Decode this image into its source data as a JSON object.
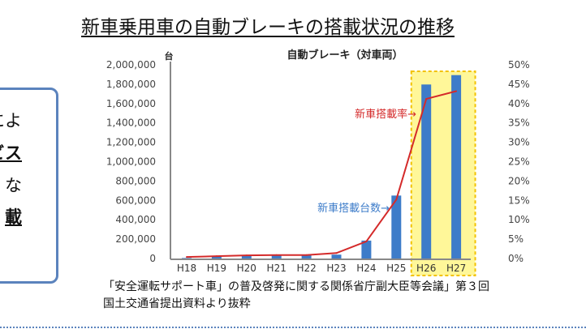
{
  "slide": {
    "title": "新車乗用車の自動ブレーキの搭載状況の推移",
    "left_box_lines": [
      "によ",
      "ビス",
      "な",
      "載"
    ],
    "caption_line1": "「安全運転サポート車」の普及啓発に関する関係省庁副大臣等会議」第３回",
    "caption_line2": "国土交通省提出資料より抜粋"
  },
  "chart_data": {
    "type": "bar+line",
    "title": "自動ブレーキ（対車両）",
    "ylabel": "台",
    "categories": [
      "H18",
      "H19",
      "H20",
      "H21",
      "H22",
      "H23",
      "H24",
      "H25",
      "H26",
      "H27"
    ],
    "series": [
      {
        "name": "新車搭載台数",
        "type": "bar",
        "axis": "left",
        "color": "#3d7cc9",
        "values": [
          5000,
          20000,
          35000,
          35000,
          35000,
          40000,
          185000,
          650000,
          1797000,
          1894000
        ]
      },
      {
        "name": "新車搭載率",
        "type": "line",
        "axis": "right",
        "color": "#d42a2a",
        "unit": "%",
        "values": [
          0.4,
          0.6,
          0.8,
          0.9,
          0.9,
          1.4,
          4.4,
          15.2,
          41.2,
          43.2
        ]
      }
    ],
    "ylim": [
      0,
      2000000
    ],
    "y2lim": [
      0,
      50
    ],
    "yticks": [
      "0",
      "200,000",
      "400,000",
      "600,000",
      "800,000",
      "1,000,000",
      "1,200,000",
      "1,400,000",
      "1,600,000",
      "1,800,000",
      "2,000,000"
    ],
    "y2ticks": [
      "0%",
      "5%",
      "10%",
      "15%",
      "20%",
      "25%",
      "30%",
      "35%",
      "40%",
      "45%",
      "50%"
    ],
    "annotations": [
      "新車搭載率→",
      "新車搭載台数→"
    ],
    "highlight": {
      "categories": [
        "H26",
        "H27"
      ],
      "color": "#fff799",
      "border": "#f2c200"
    },
    "grid": false
  }
}
